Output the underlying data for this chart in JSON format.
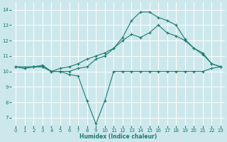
{
  "title": "",
  "xlabel": "Humidex (Indice chaleur)",
  "bg_color": "#cde8ec",
  "grid_color": "#b0d8de",
  "line_color": "#1a7a6e",
  "xlim": [
    -0.5,
    23.5
  ],
  "ylim": [
    6.5,
    14.5
  ],
  "xticks": [
    0,
    1,
    2,
    3,
    4,
    5,
    6,
    7,
    8,
    9,
    10,
    11,
    12,
    13,
    14,
    15,
    16,
    17,
    18,
    19,
    20,
    21,
    22,
    23
  ],
  "yticks": [
    7,
    8,
    9,
    10,
    11,
    12,
    13,
    14
  ],
  "line1_x": [
    0,
    1,
    2,
    3,
    4,
    5,
    6,
    7,
    8,
    9,
    10,
    11,
    12,
    13,
    14,
    15,
    16,
    17,
    18,
    19,
    20,
    21,
    22,
    23
  ],
  "line1_y": [
    10.3,
    10.2,
    10.3,
    10.3,
    10.0,
    10.0,
    9.8,
    9.7,
    8.1,
    6.6,
    8.1,
    10.0,
    10.0,
    10.0,
    10.0,
    10.0,
    10.0,
    10.0,
    10.0,
    10.0,
    10.0,
    10.0,
    10.2,
    10.3
  ],
  "line2_x": [
    0,
    1,
    2,
    3,
    4,
    5,
    6,
    7,
    8,
    9,
    10,
    11,
    12,
    13,
    14,
    15,
    16,
    17,
    18,
    19,
    20,
    21,
    22,
    23
  ],
  "line2_y": [
    10.3,
    10.2,
    10.3,
    10.3,
    10.0,
    10.2,
    10.3,
    10.5,
    10.8,
    11.0,
    11.2,
    11.5,
    12.0,
    12.4,
    12.2,
    12.5,
    13.0,
    12.5,
    12.3,
    12.0,
    11.5,
    11.1,
    10.5,
    10.3
  ],
  "line3_x": [
    0,
    2,
    3,
    4,
    5,
    6,
    7,
    8,
    9,
    10,
    11,
    12,
    13,
    14,
    15,
    16,
    17,
    18,
    19,
    20,
    21,
    22,
    23
  ],
  "line3_y": [
    10.3,
    10.3,
    10.4,
    10.0,
    10.0,
    10.0,
    10.2,
    10.3,
    10.8,
    11.0,
    11.5,
    12.2,
    13.3,
    13.85,
    13.85,
    13.5,
    13.3,
    13.0,
    12.1,
    11.5,
    11.2,
    10.5,
    10.3
  ]
}
